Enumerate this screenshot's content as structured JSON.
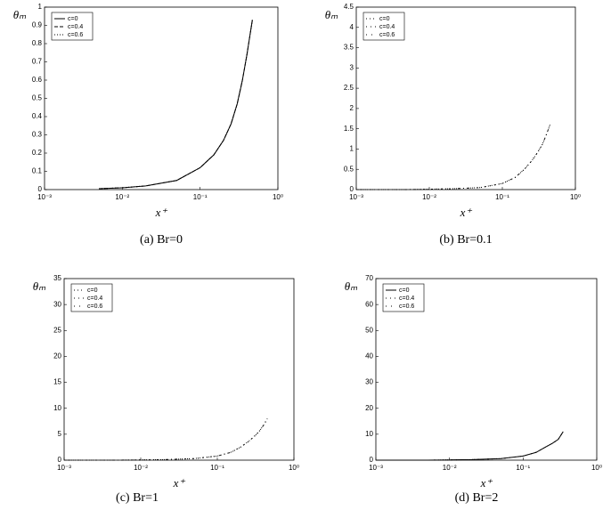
{
  "chart_data": [
    {
      "type": "line",
      "caption": "(a) Br=0",
      "xlabel": "x⁺",
      "ylabel": "θₘ",
      "xscale": "log",
      "legend": "upper left",
      "xlim": [
        0.001,
        1
      ],
      "xticks": [
        {
          "value": 0.001,
          "label": "10⁻³"
        },
        {
          "value": 0.01,
          "label": "10⁻²"
        },
        {
          "value": 0.1,
          "label": "10⁻¹"
        },
        {
          "value": 1,
          "label": "10⁰"
        }
      ],
      "ylim": [
        0,
        1
      ],
      "yticks": [
        0,
        0.1,
        0.2,
        0.3,
        0.4,
        0.5,
        0.6,
        0.7,
        0.8,
        0.9,
        1
      ],
      "x": [
        0.005,
        0.01,
        0.02,
        0.05,
        0.1,
        0.15,
        0.2,
        0.25,
        0.3,
        0.35,
        0.4,
        0.47
      ],
      "series": [
        {
          "name": "c=0",
          "color": "#000000",
          "dash": "none",
          "values": [
            0.005,
            0.01,
            0.02,
            0.05,
            0.12,
            0.19,
            0.27,
            0.36,
            0.47,
            0.6,
            0.74,
            0.93
          ]
        },
        {
          "name": "c=0.4",
          "color": "#000000",
          "dash": "4 2",
          "values": [
            0.005,
            0.01,
            0.02,
            0.05,
            0.12,
            0.19,
            0.27,
            0.36,
            0.47,
            0.6,
            0.74,
            0.93
          ]
        },
        {
          "name": "c=0.6",
          "color": "#000000",
          "dash": "1 2",
          "values": [
            0.005,
            0.01,
            0.02,
            0.05,
            0.12,
            0.19,
            0.27,
            0.36,
            0.47,
            0.6,
            0.74,
            0.93
          ]
        }
      ]
    },
    {
      "type": "line",
      "caption": "(b) Br=0.1",
      "xlabel": "x⁺",
      "ylabel": "θₘ",
      "xscale": "log",
      "legend": "upper left",
      "xlim": [
        0.001,
        1
      ],
      "xticks": [
        {
          "value": 0.001,
          "label": "10⁻³"
        },
        {
          "value": 0.01,
          "label": "10⁻²"
        },
        {
          "value": 0.1,
          "label": "10⁻¹"
        },
        {
          "value": 1,
          "label": "10⁰"
        }
      ],
      "ylim": [
        0,
        4.5
      ],
      "yticks": [
        0,
        0.5,
        1,
        1.5,
        2,
        2.5,
        3,
        3.5,
        4,
        4.5
      ],
      "x": [
        0.001,
        0.002,
        0.005,
        0.01,
        0.02,
        0.05,
        0.1,
        0.15,
        0.2,
        0.25,
        0.3,
        0.35,
        0.4,
        0.45
      ],
      "series": [
        {
          "name": "c=0",
          "color": "#000000",
          "dash": "1 3",
          "values": [
            0,
            0,
            0,
            0.01,
            0.02,
            0.05,
            0.15,
            0.3,
            0.5,
            0.7,
            0.9,
            1.1,
            1.35,
            1.6
          ]
        },
        {
          "name": "c=0.4",
          "color": "#000000",
          "dash": "1 4",
          "values": [
            0,
            0,
            0,
            0.01,
            0.02,
            0.05,
            0.15,
            0.3,
            0.5,
            0.7,
            0.9,
            1.1,
            1.35,
            1.6
          ]
        },
        {
          "name": "c=0.6",
          "color": "#000000",
          "dash": "1 5",
          "values": [
            0,
            0,
            0,
            0.01,
            0.02,
            0.05,
            0.15,
            0.3,
            0.5,
            0.7,
            0.9,
            1.1,
            1.35,
            1.6
          ]
        }
      ]
    },
    {
      "type": "line",
      "caption": "(c) Br=1",
      "xlabel": "x⁺",
      "ylabel": "θₘ",
      "xscale": "log",
      "legend": "upper left",
      "xlim": [
        0.001,
        1
      ],
      "xticks": [
        {
          "value": 0.001,
          "label": "10⁻³"
        },
        {
          "value": 0.01,
          "label": "10⁻²"
        },
        {
          "value": 0.1,
          "label": "10⁻¹"
        },
        {
          "value": 1,
          "label": "10⁰"
        }
      ],
      "ylim": [
        0,
        35
      ],
      "yticks": [
        0,
        5,
        10,
        15,
        20,
        25,
        30,
        35
      ],
      "x": [
        0.001,
        0.002,
        0.005,
        0.01,
        0.02,
        0.05,
        0.1,
        0.15,
        0.2,
        0.25,
        0.3,
        0.35,
        0.4,
        0.45
      ],
      "series": [
        {
          "name": "c=0",
          "color": "#000000",
          "dash": "1 3",
          "values": [
            0,
            0,
            0,
            0.05,
            0.1,
            0.3,
            0.8,
            1.5,
            2.5,
            3.5,
            4.5,
            5.5,
            6.7,
            8
          ]
        },
        {
          "name": "c=0.4",
          "color": "#000000",
          "dash": "1 4",
          "values": [
            0,
            0,
            0,
            0.05,
            0.1,
            0.3,
            0.8,
            1.5,
            2.5,
            3.5,
            4.5,
            5.5,
            6.7,
            8
          ]
        },
        {
          "name": "c=0.6",
          "color": "#000000",
          "dash": "1 5",
          "values": [
            0,
            0,
            0,
            0.05,
            0.1,
            0.3,
            0.8,
            1.5,
            2.5,
            3.5,
            4.5,
            5.5,
            6.7,
            8
          ]
        }
      ]
    },
    {
      "type": "line",
      "caption": "(d) Br=2",
      "xlabel": "x⁺",
      "ylabel": "θₘ",
      "xscale": "log",
      "legend": "upper left",
      "xlim": [
        0.001,
        1
      ],
      "xticks": [
        {
          "value": 0.001,
          "label": "10⁻³"
        },
        {
          "value": 0.01,
          "label": "10⁻²"
        },
        {
          "value": 0.1,
          "label": "10⁻¹"
        },
        {
          "value": 1,
          "label": "10⁰"
        }
      ],
      "ylim": [
        0,
        70
      ],
      "yticks": [
        0,
        10,
        20,
        30,
        40,
        50,
        60,
        70
      ],
      "x": [
        0.001,
        0.002,
        0.005,
        0.01,
        0.02,
        0.05,
        0.1,
        0.15,
        0.2,
        0.25,
        0.3,
        0.35
      ],
      "series": [
        {
          "name": "c=0",
          "color": "#000000",
          "dash": "none",
          "values": [
            0,
            0,
            0,
            0.1,
            0.2,
            0.6,
            1.6,
            3,
            5,
            6.5,
            8,
            11
          ]
        },
        {
          "name": "c=0.4",
          "color": "#000000",
          "dash": "1 4",
          "values": [
            0,
            0,
            0,
            0.1,
            0.2,
            0.6,
            1.6,
            3,
            5,
            6.5,
            8,
            11
          ]
        },
        {
          "name": "c=0.6",
          "color": "#000000",
          "dash": "1 5",
          "values": [
            0,
            0,
            0,
            0.1,
            0.2,
            0.6,
            1.6,
            3,
            5,
            6.5,
            8,
            11
          ]
        }
      ]
    }
  ]
}
